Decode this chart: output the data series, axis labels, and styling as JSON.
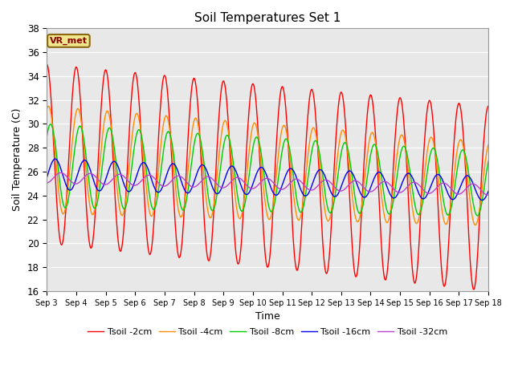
{
  "title": "Soil Temperatures Set 1",
  "xlabel": "Time",
  "ylabel": "Soil Temperature (C)",
  "ylim": [
    16,
    38
  ],
  "yticks": [
    16,
    18,
    20,
    22,
    24,
    26,
    28,
    30,
    32,
    34,
    36,
    38
  ],
  "x_start_day": 3,
  "x_end_day": 18,
  "n_points": 720,
  "annotation": "VR_met",
  "colors": {
    "tsoil_2cm": "#FF0000",
    "tsoil_4cm": "#FF8C00",
    "tsoil_8cm": "#00CC00",
    "tsoil_16cm": "#0000EE",
    "tsoil_32cm": "#BB44CC"
  },
  "labels": [
    "Tsoil -2cm",
    "Tsoil -4cm",
    "Tsoil -8cm",
    "Tsoil -16cm",
    "Tsoil -32cm"
  ],
  "background_color": "#E8E8E8",
  "fig_bg": "#FFFFFF",
  "xtick_labels": [
    "Sep 3",
    "Sep 4",
    "Sep 5",
    "Sep 6",
    "Sep 7",
    "Sep 8",
    "Sep 9",
    "Sep 10",
    "Sep 11",
    "Sep 12",
    "Sep 13",
    "Sep 14",
    "Sep 15",
    "Sep 16",
    "Sep 17",
    "Sep 18"
  ],
  "xtick_positions": [
    3,
    4,
    5,
    6,
    7,
    8,
    9,
    10,
    11,
    12,
    13,
    14,
    15,
    16,
    17,
    18
  ]
}
